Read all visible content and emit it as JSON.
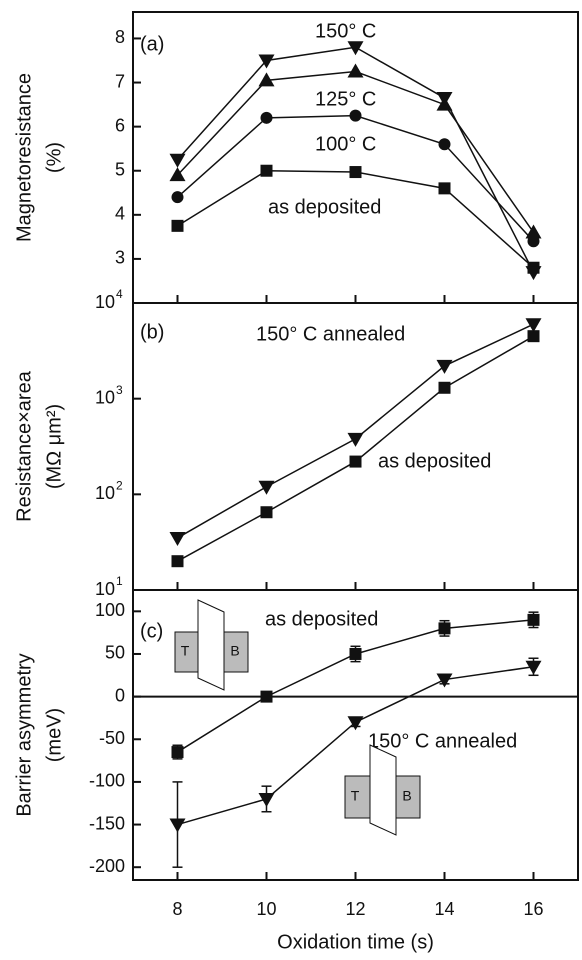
{
  "chart_data": [
    {
      "type": "line",
      "x": [
        8,
        10,
        12,
        14,
        16
      ],
      "xlim": [
        7,
        17
      ],
      "xticks": [
        8,
        10,
        12,
        14,
        16
      ],
      "ylim": [
        2,
        8.6
      ],
      "yticks": [
        3,
        4,
        5,
        6,
        7,
        8
      ],
      "y_label": [
        "Magnetoresistance",
        "(%)"
      ],
      "annotations": [
        "(a)",
        "150° C",
        "125° C",
        "100° C",
        "as deposited"
      ],
      "series": [
        {
          "marker": "square",
          "color": "#111111",
          "values": [
            3.75,
            5.0,
            4.97,
            4.6,
            2.8
          ]
        },
        {
          "marker": "circle",
          "color": "#111111",
          "values": [
            4.4,
            6.2,
            6.25,
            5.6,
            3.4
          ]
        },
        {
          "marker": "triangle-up",
          "color": "#111111",
          "values": [
            4.9,
            7.05,
            7.25,
            6.5,
            3.6
          ]
        },
        {
          "marker": "triangle-down",
          "color": "#111111",
          "values": [
            5.25,
            7.5,
            7.8,
            6.65,
            2.7
          ]
        }
      ]
    },
    {
      "type": "line",
      "x": [
        8,
        10,
        12,
        14,
        16
      ],
      "xlim": [
        7,
        17
      ],
      "xticks": [
        8,
        10,
        12,
        14,
        16
      ],
      "log_y": true,
      "ylim": [
        10,
        10000
      ],
      "yticks": [
        {
          "value": 10,
          "label": "10",
          "sup": "1"
        },
        {
          "value": 100,
          "label": "10",
          "sup": "2"
        },
        {
          "value": 1000,
          "label": "10",
          "sup": "3"
        },
        {
          "value": 10000,
          "label": "10",
          "sup": "4"
        }
      ],
      "y_label": [
        "Resistance×area",
        "(MΩ μm²)"
      ],
      "annotations": [
        "(b)",
        "150° C annealed",
        "as deposited"
      ],
      "series": [
        {
          "marker": "square",
          "color": "#111111",
          "values": [
            20,
            65,
            220,
            1300,
            4500
          ]
        },
        {
          "marker": "triangle-down",
          "color": "#111111",
          "values": [
            35,
            120,
            380,
            2200,
            6000
          ]
        }
      ]
    },
    {
      "type": "line",
      "x": [
        8,
        10,
        12,
        14,
        16
      ],
      "xlim": [
        7,
        17
      ],
      "xticks": [
        8,
        10,
        12,
        14,
        16
      ],
      "x_label": "Oxidation time (s)",
      "ylim": [
        -215,
        125
      ],
      "yticks": [
        -200,
        -150,
        -100,
        -50,
        0,
        50,
        100
      ],
      "zero_line": true,
      "y_label": [
        "Barrier asymmetry",
        "(meV)"
      ],
      "annotations": [
        "(c)",
        "as deposited",
        "150° C annealed"
      ],
      "insets": [
        {
          "left": "T",
          "right": "B"
        },
        {
          "left": "T",
          "right": "B"
        }
      ],
      "series": [
        {
          "marker": "square",
          "color": "#111111",
          "values": [
            -65,
            0,
            50,
            80,
            90
          ],
          "error": [
            8,
            4,
            9,
            9,
            9
          ]
        },
        {
          "marker": "triangle-down",
          "color": "#111111",
          "values": [
            -150,
            -120,
            -30,
            20,
            35
          ],
          "error": [
            50,
            15,
            5,
            5,
            10
          ]
        }
      ]
    }
  ]
}
